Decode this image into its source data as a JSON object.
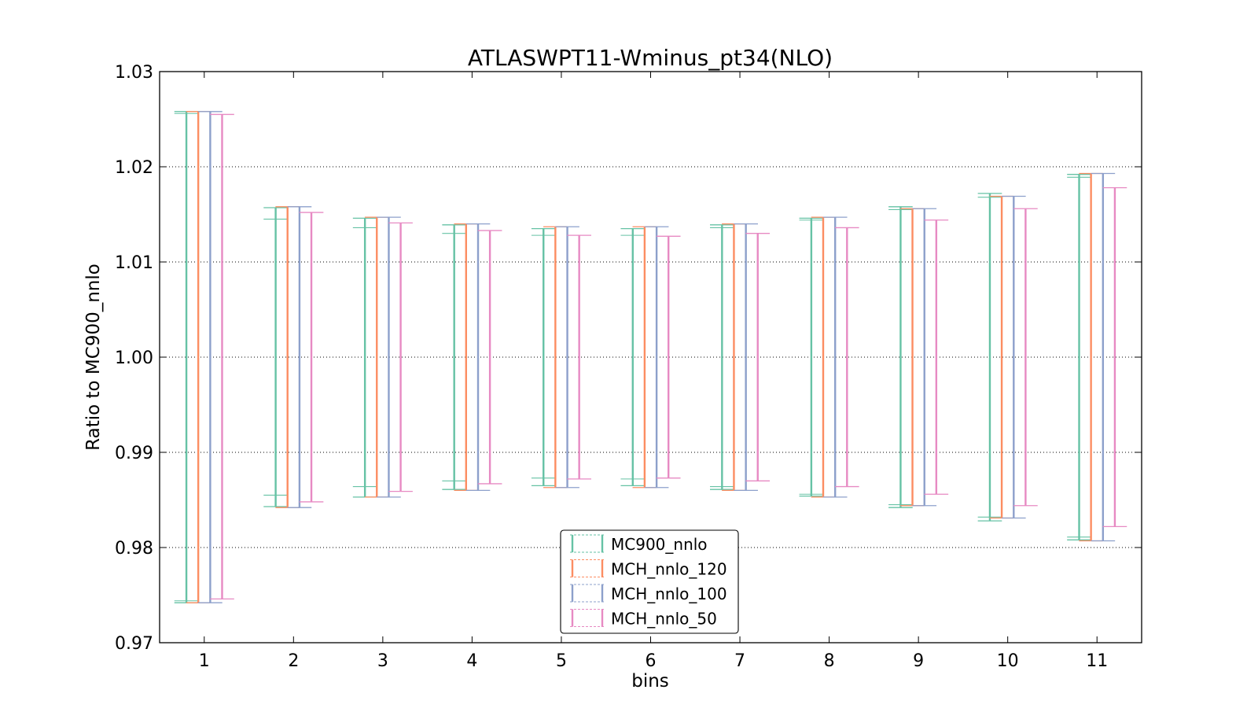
{
  "chart_data": {
    "type": "errorbar",
    "title": "ATLASWPT11-Wminus_pt34(NLO)",
    "xlabel": "bins",
    "ylabel": "Ratio to MC900_nnlo",
    "categories": [
      "1",
      "2",
      "3",
      "4",
      "5",
      "6",
      "7",
      "8",
      "9",
      "10",
      "11"
    ],
    "xlim": [
      0.5,
      11.5
    ],
    "ylim": [
      0.97,
      1.03
    ],
    "yticks": [
      "0.97",
      "0.98",
      "0.99",
      "1.00",
      "1.01",
      "1.02",
      "1.03"
    ],
    "grid": "y-dotted",
    "legend_position": "lower-center",
    "series": [
      {
        "name": "MC900_nnlo",
        "color": "#66c2a5",
        "upper": [
          1.0258,
          1.0157,
          1.0146,
          1.0139,
          1.0135,
          1.0135,
          1.0139,
          1.0146,
          1.0158,
          1.0172,
          1.0192
        ],
        "lower": [
          0.9742,
          0.9843,
          0.9853,
          0.9861,
          0.9865,
          0.9865,
          0.9861,
          0.9854,
          0.9842,
          0.9828,
          0.9808
        ],
        "inner_upper": [
          1.0256,
          1.0145,
          1.0136,
          1.013,
          1.0128,
          1.0128,
          1.0136,
          1.0144,
          1.0155,
          1.0168,
          1.0189
        ],
        "inner_lower": [
          0.9744,
          0.9855,
          0.9864,
          0.987,
          0.9873,
          0.9872,
          0.9864,
          0.9856,
          0.9845,
          0.9832,
          0.9811
        ]
      },
      {
        "name": "MCH_nnlo_120",
        "color": "#fc8d62",
        "upper": [
          1.0258,
          1.0158,
          1.0147,
          1.014,
          1.0137,
          1.0137,
          1.014,
          1.0147,
          1.0156,
          1.0169,
          1.0193
        ],
        "lower": [
          0.9742,
          0.9842,
          0.9853,
          0.986,
          0.9863,
          0.9863,
          0.986,
          0.9853,
          0.9844,
          0.9831,
          0.9807
        ]
      },
      {
        "name": "MCH_nnlo_100",
        "color": "#8da0cb",
        "upper": [
          1.0258,
          1.0158,
          1.0147,
          1.014,
          1.0137,
          1.0137,
          1.014,
          1.0147,
          1.0156,
          1.0169,
          1.0193
        ],
        "lower": [
          0.9742,
          0.9842,
          0.9853,
          0.986,
          0.9863,
          0.9863,
          0.986,
          0.9853,
          0.9844,
          0.9831,
          0.9807
        ]
      },
      {
        "name": "MCH_nnlo_50",
        "color": "#e78ac3",
        "upper": [
          1.0255,
          1.0152,
          1.0141,
          1.0133,
          1.0128,
          1.0127,
          1.013,
          1.0136,
          1.0144,
          1.0156,
          1.0178
        ],
        "lower": [
          0.9746,
          0.9848,
          0.9859,
          0.9867,
          0.9872,
          0.9873,
          0.987,
          0.9864,
          0.9856,
          0.9844,
          0.9822
        ]
      }
    ]
  }
}
